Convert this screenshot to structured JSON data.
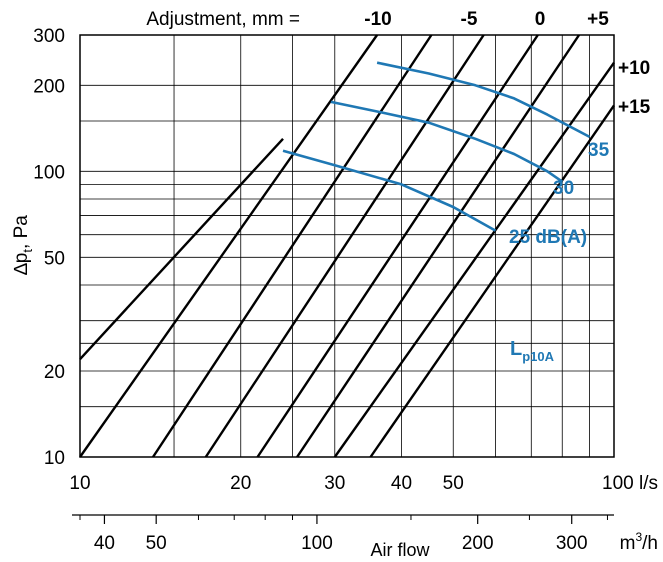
{
  "chart_data": {
    "type": "line",
    "title": "Adjustment, mm =",
    "x_scale": "log",
    "y_scale": "log",
    "xlim": [
      10,
      100
    ],
    "ylim": [
      10,
      300
    ],
    "xlabel": "Air flow",
    "x_unit_label": "100 l/s",
    "ylabel": "∆p",
    "ylabel_sub": "t",
    "ylabel_suffix": ", Pa",
    "x_ticks": [
      "10",
      "20",
      "30",
      "40",
      "50"
    ],
    "x_tick_values": [
      10,
      20,
      30,
      40,
      50
    ],
    "y_ticks": [
      "10",
      "20",
      "50",
      "100",
      "200",
      "300"
    ],
    "y_tick_values": [
      10,
      20,
      50,
      100,
      200,
      300
    ],
    "x_grid": [
      10,
      15,
      20,
      25,
      30,
      40,
      50,
      60,
      70,
      80,
      90,
      100
    ],
    "y_grid": [
      10,
      15,
      20,
      25,
      30,
      40,
      50,
      60,
      70,
      80,
      90,
      100,
      150,
      200,
      300
    ],
    "x2_ticks": [
      "40",
      "50",
      "100",
      "200",
      "300"
    ],
    "x2_tick_values": [
      40,
      50,
      100,
      200,
      300
    ],
    "x2_minor_values": [
      36,
      60,
      70,
      80,
      90,
      150,
      250,
      350
    ],
    "x2_unit": "m",
    "x2_unit_sup": "3",
    "x2_unit_suffix": "/h",
    "adjustment_lines": [
      {
        "label": "",
        "x": [
          10,
          24
        ],
        "y": [
          22,
          130
        ]
      },
      {
        "label": "-10",
        "x": [
          10,
          36
        ],
        "y": [
          10,
          300
        ]
      },
      {
        "label": "",
        "x": [
          13.7,
          45.5
        ],
        "y": [
          10,
          300
        ]
      },
      {
        "label": "-5",
        "x": [
          17.2,
          57
        ],
        "y": [
          10,
          300
        ]
      },
      {
        "label": "0",
        "x": [
          21.5,
          72
        ],
        "y": [
          10,
          300
        ]
      },
      {
        "label": "+5",
        "x": [
          25.5,
          86
        ],
        "y": [
          10,
          300
        ]
      },
      {
        "label": "+10",
        "x": [
          30,
          100
        ],
        "y": [
          10,
          240
        ]
      },
      {
        "label": "+15",
        "x": [
          35,
          100
        ],
        "y": [
          10,
          170
        ]
      }
    ],
    "series": [
      {
        "name": "25 dB(A)",
        "x": [
          24,
          30,
          40,
          50,
          60
        ],
        "y": [
          118,
          105,
          90,
          75,
          62
        ]
      },
      {
        "name": "30",
        "x": [
          29.5,
          36,
          45,
          55,
          65,
          75,
          80
        ],
        "y": [
          175,
          162,
          148,
          130,
          115,
          100,
          92
        ]
      },
      {
        "name": "35",
        "x": [
          36,
          45,
          55,
          65,
          75,
          90
        ],
        "y": [
          240,
          220,
          200,
          180,
          158,
          132
        ]
      }
    ],
    "parameter_label": "L",
    "parameter_label_sub": "p10A",
    "grid": true
  }
}
